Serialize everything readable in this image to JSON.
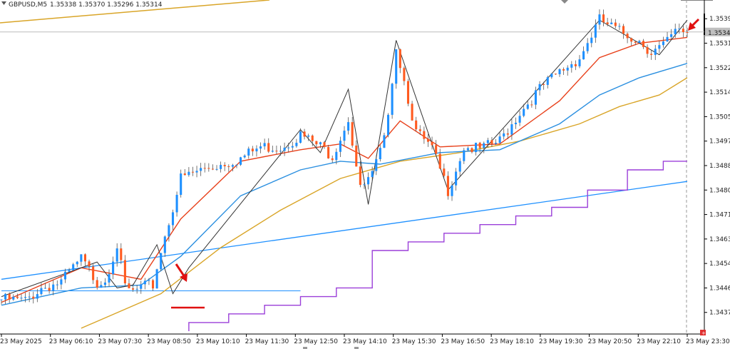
{
  "header": {
    "symbol": "GBPUSD,M5",
    "ohlc": "1.35338 1.35370 1.35296 1.35314"
  },
  "colors": {
    "bull": "#1e90ff",
    "bear": "#ff5a1f",
    "ma_fast": "#e8401a",
    "ma_mid": "#2a8fe0",
    "ma_slow": "#d9a528",
    "trend_line": "#1e90ff",
    "zigzag": "#333333",
    "step": "#9b3fd9",
    "arrow": "#e01010"
  },
  "chart_data": {
    "type": "candlestick",
    "title": "",
    "current_price": "1.35349",
    "ylim": [
      1.343,
      1.3546
    ],
    "y_ticks": [
      "1.35395",
      "1.35310",
      "1.35225",
      "1.35140",
      "1.35055",
      "1.34970",
      "1.34885",
      "1.34800",
      "1.34715",
      "1.34630",
      "1.34545",
      "1.34460",
      "1.34375"
    ],
    "x_ticks": [
      "23 May 2025",
      "23 May 06:10",
      "23 May 07:30",
      "23 May 08:50",
      "23 May 10:10",
      "23 May 11:30",
      "23 May 12:50",
      "23 May 14:10",
      "23 May 15:30",
      "23 May 16:50",
      "23 May 18:10",
      "23 May 19:30",
      "23 May 20:50",
      "23 May 22:10",
      "23 May 23:30"
    ],
    "close_path": [
      [
        0,
        1.3442
      ],
      [
        6,
        1.34415
      ],
      [
        10,
        1.3446
      ],
      [
        15,
        1.3448
      ],
      [
        20,
        1.3456
      ],
      [
        24,
        1.3448
      ],
      [
        26,
        1.3449
      ],
      [
        29,
        1.3461
      ],
      [
        31,
        1.3446
      ],
      [
        33,
        1.34445
      ],
      [
        35,
        1.3446
      ],
      [
        38,
        1.3447
      ],
      [
        40,
        1.3459
      ],
      [
        45,
        1.3484
      ],
      [
        50,
        1.3487
      ],
      [
        55,
        1.3489
      ],
      [
        60,
        1.3491
      ],
      [
        65,
        1.3495
      ],
      [
        70,
        1.3495
      ],
      [
        75,
        1.3499
      ],
      [
        80,
        1.3495
      ],
      [
        83,
        1.3492
      ],
      [
        87,
        1.3505
      ],
      [
        90,
        1.348
      ],
      [
        93,
        1.3485
      ],
      [
        96,
        1.3497
      ],
      [
        99,
        1.353
      ],
      [
        101,
        1.3518
      ],
      [
        104,
        1.35
      ],
      [
        108,
        1.3494
      ],
      [
        112,
        1.348
      ],
      [
        116,
        1.3495
      ],
      [
        120,
        1.3494
      ],
      [
        125,
        1.3497
      ],
      [
        130,
        1.3507
      ],
      [
        135,
        1.3515
      ],
      [
        140,
        1.3521
      ],
      [
        145,
        1.3526
      ],
      [
        150,
        1.3539
      ],
      [
        155,
        1.3535
      ],
      [
        160,
        1.3532
      ],
      [
        163,
        1.3528
      ],
      [
        166,
        1.353
      ],
      [
        170,
        1.3536
      ],
      [
        172,
        1.35349
      ]
    ],
    "ma_fast": [
      [
        0,
        1.3441
      ],
      [
        20,
        1.3453
      ],
      [
        35,
        1.3449
      ],
      [
        45,
        1.347
      ],
      [
        60,
        1.349
      ],
      [
        75,
        1.3494
      ],
      [
        85,
        1.3496
      ],
      [
        92,
        1.3491
      ],
      [
        100,
        1.3504
      ],
      [
        110,
        1.3495
      ],
      [
        125,
        1.3496
      ],
      [
        140,
        1.3511
      ],
      [
        150,
        1.3526
      ],
      [
        160,
        1.3531
      ],
      [
        172,
        1.3533
      ]
    ],
    "ma_mid": [
      [
        0,
        1.344
      ],
      [
        20,
        1.3446
      ],
      [
        35,
        1.3447
      ],
      [
        45,
        1.3457
      ],
      [
        60,
        1.3478
      ],
      [
        75,
        1.3487
      ],
      [
        85,
        1.349
      ],
      [
        95,
        1.3489
      ],
      [
        110,
        1.3493
      ],
      [
        125,
        1.3494
      ],
      [
        140,
        1.3503
      ],
      [
        150,
        1.3513
      ],
      [
        160,
        1.3519
      ],
      [
        172,
        1.3524
      ]
    ],
    "ma_slow": [
      [
        20,
        1.3432
      ],
      [
        40,
        1.3444
      ],
      [
        55,
        1.346
      ],
      [
        70,
        1.3473
      ],
      [
        85,
        1.3484
      ],
      [
        100,
        1.349
      ],
      [
        115,
        1.3493
      ],
      [
        130,
        1.3497
      ],
      [
        145,
        1.3503
      ],
      [
        155,
        1.3509
      ],
      [
        165,
        1.3513
      ],
      [
        172,
        1.3519
      ]
    ],
    "zigzag": [
      [
        0,
        1.3443
      ],
      [
        24,
        1.3455
      ],
      [
        29,
        1.3446
      ],
      [
        33,
        1.3447
      ],
      [
        39,
        1.3461
      ],
      [
        43,
        1.3444
      ],
      [
        47,
        1.3453
      ],
      [
        75,
        1.3501
      ],
      [
        80,
        1.3493
      ],
      [
        87,
        1.3515
      ],
      [
        92,
        1.3475
      ],
      [
        99,
        1.3532
      ],
      [
        112,
        1.348
      ],
      [
        150,
        1.3539
      ],
      [
        165,
        1.3527
      ],
      [
        172,
        1.3539
      ]
    ],
    "trend_line": [
      [
        0,
        1.3449
      ],
      [
        172,
        1.3483
      ]
    ],
    "horizontal_line": [
      [
        0,
        1.3445
      ],
      [
        75,
        1.3445
      ]
    ],
    "step_line": [
      [
        47,
        1.3431
      ],
      [
        47,
        1.3434
      ],
      [
        57,
        1.3434
      ],
      [
        57,
        1.3437
      ],
      [
        66,
        1.3437
      ],
      [
        66,
        1.344
      ],
      [
        75,
        1.344
      ],
      [
        75,
        1.3443
      ],
      [
        84,
        1.3443
      ],
      [
        84,
        1.3446
      ],
      [
        93,
        1.3446
      ],
      [
        93,
        1.3459
      ],
      [
        102,
        1.3459
      ],
      [
        102,
        1.3462
      ],
      [
        111,
        1.3462
      ],
      [
        111,
        1.3465
      ],
      [
        120,
        1.3465
      ],
      [
        120,
        1.3468
      ],
      [
        129,
        1.3468
      ],
      [
        129,
        1.3471
      ],
      [
        138,
        1.3471
      ],
      [
        138,
        1.3474
      ],
      [
        147,
        1.3474
      ],
      [
        147,
        1.348
      ],
      [
        157,
        1.348
      ],
      [
        157,
        1.3487
      ],
      [
        166,
        1.3487
      ],
      [
        166,
        1.349
      ],
      [
        172,
        1.349
      ]
    ]
  }
}
